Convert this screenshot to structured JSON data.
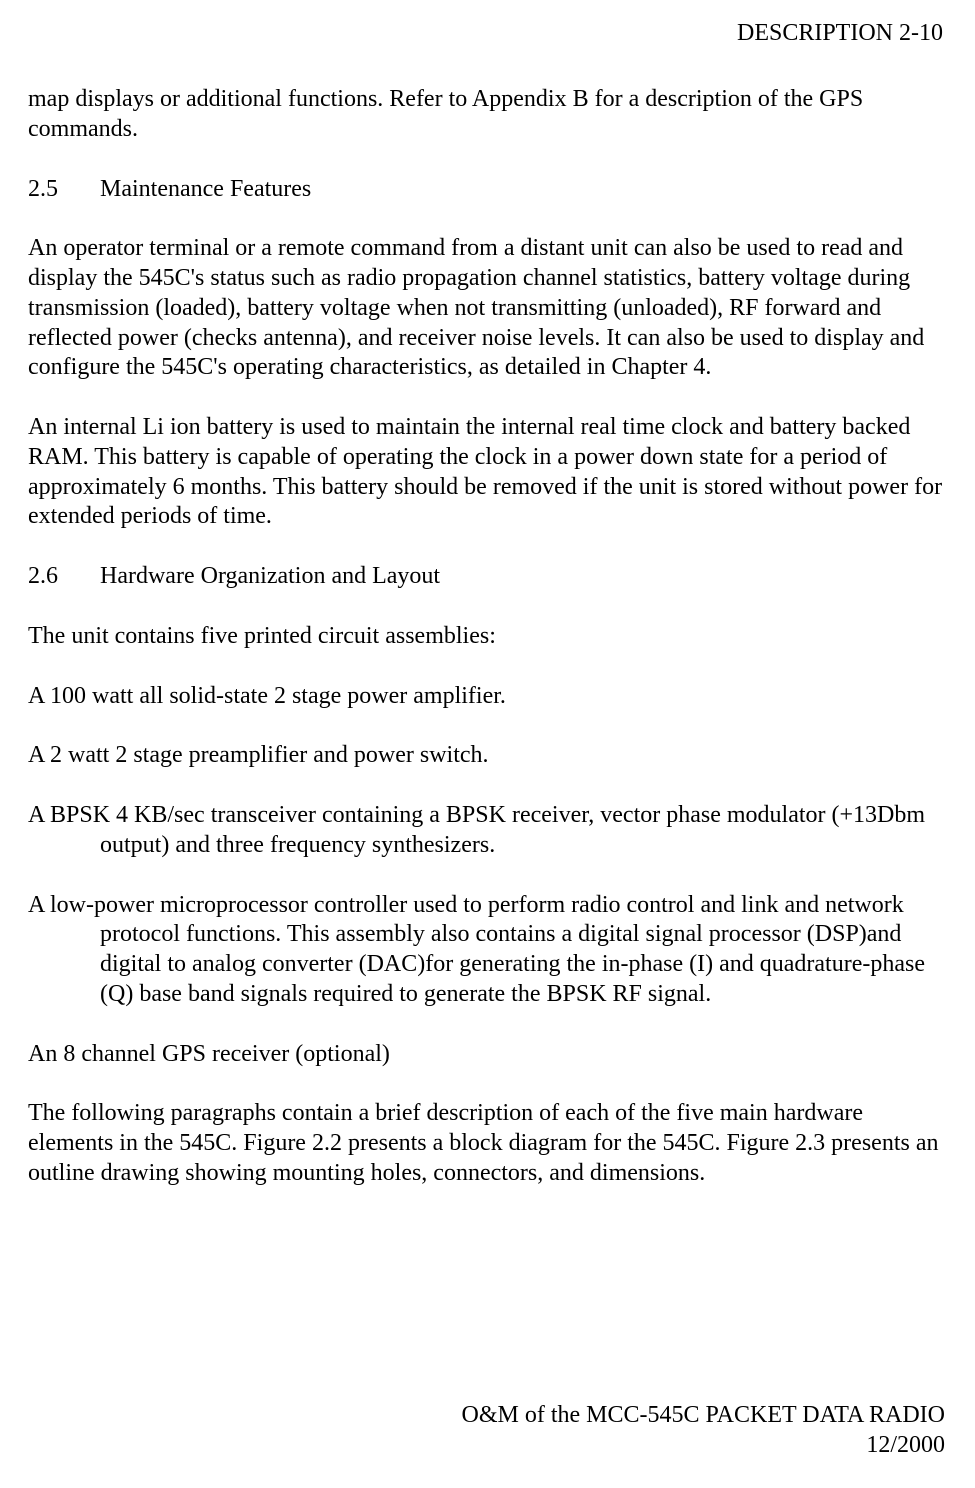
{
  "header": {
    "text": "DESCRIPTION  2-10"
  },
  "content": {
    "intro_para": "map displays or additional functions. Refer to Appendix B for a description of the GPS commands.",
    "section25": {
      "num": "2.5",
      "title": "Maintenance Features",
      "para1": "An operator terminal or a remote command from a distant unit can also be used to read and display the 545C's status such as radio propagation channel statistics, battery voltage during transmission (loaded), battery voltage when not transmitting (unloaded), RF forward and reflected power (checks antenna), and receiver noise levels. It can also be used to display and configure the 545C's operating characteristics, as detailed in Chapter 4.",
      "para2": "An internal Li ion battery is used to maintain the internal real time clock and battery backed RAM.  This battery is capable of operating the clock in a power down state for a period of approximately 6 months.  This battery should be removed if the unit is stored without power for extended periods of time."
    },
    "section26": {
      "num": "2.6",
      "title": "Hardware Organization and Layout",
      "intro": "The unit contains five printed circuit assemblies:",
      "items": [
        "A 100 watt all solid-state 2 stage power amplifier.",
        "A 2 watt 2 stage preamplifier and power switch.",
        "A BPSK 4 KB/sec transceiver containing a BPSK receiver, vector phase modulator (+13Dbm output) and three frequency synthesizers.",
        "A low-power microprocessor controller used to perform radio control and link and network protocol functions. This assembly  also contains a digital signal processor (DSP)and digital to analog converter (DAC)for generating the in-phase (I) and quadrature-phase (Q) base band signals required to generate the BPSK RF signal.",
        "An 8 channel GPS receiver (optional)"
      ],
      "closing": "The following paragraphs contain a brief description of each of the five main hardware elements in the 545C.  Figure 2.2 presents a block diagram for the 545C.  Figure 2.3 presents an outline drawing showing mounting holes, connectors, and dimensions."
    }
  },
  "footer": {
    "line1": "O&M of the MCC-545C PACKET DATA RADIO",
    "line2": "12/2000"
  }
}
